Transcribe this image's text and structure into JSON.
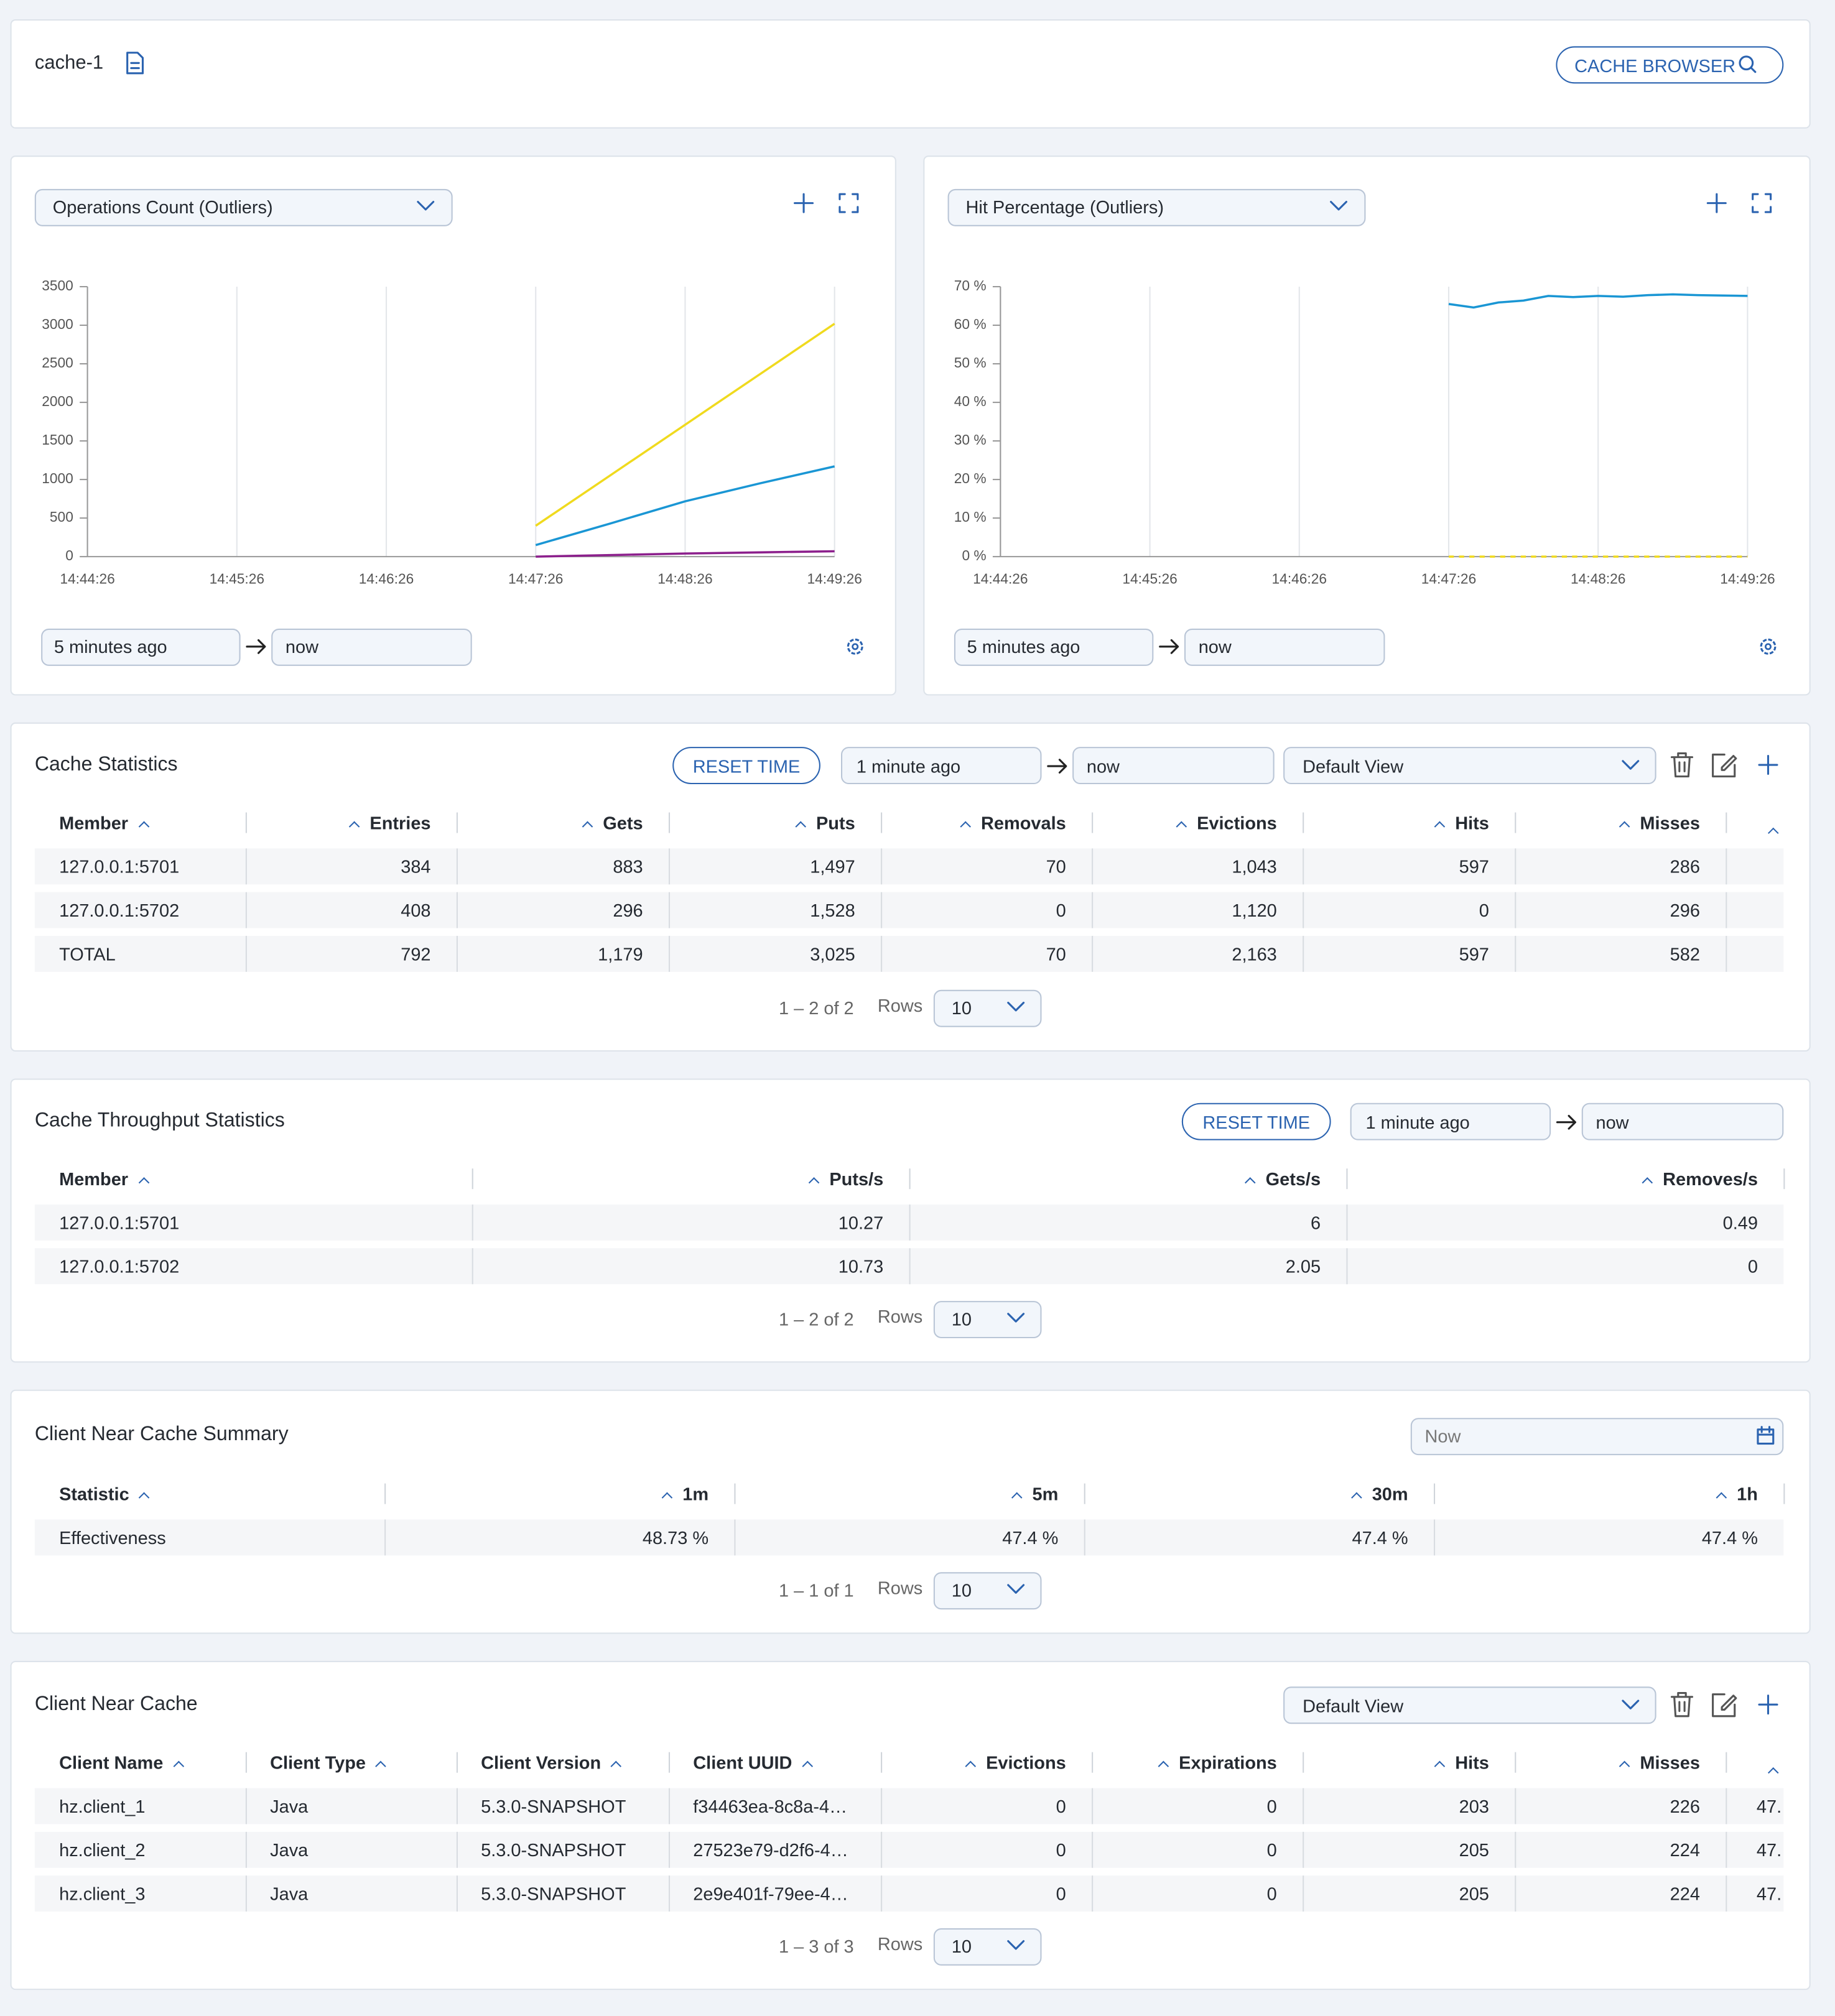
{
  "header": {
    "title": "cache-1",
    "browser_button": "CACHE BROWSER"
  },
  "chart_data": [
    {
      "type": "line",
      "title": "Operations Count (Outliers)",
      "x": [
        "14:47:26",
        "14:47:56",
        "14:48:26",
        "14:48:56",
        "14:49:26"
      ],
      "xlim": [
        "14:44:26",
        "14:49:26"
      ],
      "xticks": [
        "14:44:26",
        "14:45:26",
        "14:46:26",
        "14:47:26",
        "14:48:26",
        "14:49:26"
      ],
      "ylim": [
        0,
        3500
      ],
      "yticks": [
        0,
        500,
        1000,
        1500,
        2000,
        2500,
        3000,
        3500
      ],
      "grid": true,
      "series": [
        {
          "color": "#f0da1e",
          "values": [
            400,
            1055,
            1710,
            2365,
            3020
          ]
        },
        {
          "color": "#1a96d4",
          "values": [
            150,
            430,
            717,
            950,
            1170
          ]
        },
        {
          "color": "#8c1f8c",
          "values": [
            0,
            20,
            40,
            55,
            70
          ]
        }
      ]
    },
    {
      "type": "line",
      "title": "Hit Percentage (Outliers)",
      "x": [
        "14:47:26",
        "14:47:36",
        "14:47:46",
        "14:47:56",
        "14:48:06",
        "14:48:16",
        "14:48:26",
        "14:48:36",
        "14:48:46",
        "14:48:56",
        "14:49:06",
        "14:49:16",
        "14:49:26"
      ],
      "xlim": [
        "14:44:26",
        "14:49:26"
      ],
      "xticks": [
        "14:44:26",
        "14:45:26",
        "14:46:26",
        "14:47:26",
        "14:48:26",
        "14:49:26"
      ],
      "ylim": [
        0,
        70
      ],
      "yticks": [
        {
          "value": 0,
          "label": "0 %"
        },
        {
          "value": 10,
          "label": "10 %"
        },
        {
          "value": 20,
          "label": "20 %"
        },
        {
          "value": 30,
          "label": "30 %"
        },
        {
          "value": 40,
          "label": "40 %"
        },
        {
          "value": 50,
          "label": "50 %"
        },
        {
          "value": 60,
          "label": "60 %"
        },
        {
          "value": 70,
          "label": "70 %"
        }
      ],
      "grid": true,
      "series": [
        {
          "color": "#1a96d4",
          "values": [
            65.5,
            64.6,
            65.9,
            66.4,
            67.6,
            67.3,
            67.6,
            67.4,
            67.8,
            68.0,
            67.8,
            67.7,
            67.6
          ]
        },
        {
          "color": "#f0da1e",
          "style": "dashed",
          "values": [
            0,
            0,
            0,
            0,
            0,
            0,
            0,
            0,
            0,
            0,
            0,
            0,
            0
          ]
        }
      ]
    }
  ],
  "chart_panels": [
    {
      "from": "5 minutes ago",
      "to": "now"
    },
    {
      "from": "5 minutes ago",
      "to": "now"
    }
  ],
  "cache_statistics": {
    "title": "Cache Statistics",
    "reset": "RESET TIME",
    "from": "1 minute ago",
    "to": "now",
    "view": "Default View",
    "columns": [
      "Member",
      "Entries",
      "Gets",
      "Puts",
      "Removals",
      "Evictions",
      "Hits",
      "Misses"
    ],
    "rows": [
      [
        "127.0.0.1:5701",
        "384",
        "883",
        "1,497",
        "70",
        "1,043",
        "597",
        "286"
      ],
      [
        "127.0.0.1:5702",
        "408",
        "296",
        "1,528",
        "0",
        "1,120",
        "0",
        "296"
      ],
      [
        "TOTAL",
        "792",
        "1,179",
        "3,025",
        "70",
        "2,163",
        "597",
        "582"
      ]
    ],
    "pagination": "1 – 2 of 2",
    "rows_label": "Rows",
    "page_size": "10"
  },
  "cache_throughput": {
    "title": "Cache Throughput Statistics",
    "reset": "RESET TIME",
    "from": "1 minute ago",
    "to": "now",
    "columns": [
      "Member",
      "Puts/s",
      "Gets/s",
      "Removes/s"
    ],
    "rows": [
      [
        "127.0.0.1:5701",
        "10.27",
        "6",
        "0.49"
      ],
      [
        "127.0.0.1:5702",
        "10.73",
        "2.05",
        "0"
      ]
    ],
    "pagination": "1 – 2 of 2",
    "rows_label": "Rows",
    "page_size": "10"
  },
  "near_cache_summary": {
    "title": "Client Near Cache Summary",
    "date": "Now",
    "columns": [
      "Statistic",
      "1m",
      "5m",
      "30m",
      "1h"
    ],
    "rows": [
      [
        "Effectiveness",
        "48.73 %",
        "47.4 %",
        "47.4 %",
        "47.4 %"
      ]
    ],
    "pagination": "1 – 1 of 1",
    "rows_label": "Rows",
    "page_size": "10"
  },
  "client_near_cache": {
    "title": "Client Near Cache",
    "view": "Default View",
    "columns": [
      "Client Name",
      "Client Type",
      "Client Version",
      "Client UUID",
      "Evictions",
      "Expirations",
      "Hits",
      "Misses"
    ],
    "rows": [
      [
        "hz.client_1",
        "Java",
        "5.3.0-SNAPSHOT",
        "f34463ea-8c8a-4…",
        "0",
        "0",
        "203",
        "226",
        "47."
      ],
      [
        "hz.client_2",
        "Java",
        "5.3.0-SNAPSHOT",
        "27523e79-d2f6-4…",
        "0",
        "0",
        "205",
        "224",
        "47."
      ],
      [
        "hz.client_3",
        "Java",
        "5.3.0-SNAPSHOT",
        "2e9e401f-79ee-4…",
        "0",
        "0",
        "205",
        "224",
        "47."
      ]
    ],
    "pagination": "1 – 3 of 3",
    "rows_label": "Rows",
    "page_size": "10"
  }
}
